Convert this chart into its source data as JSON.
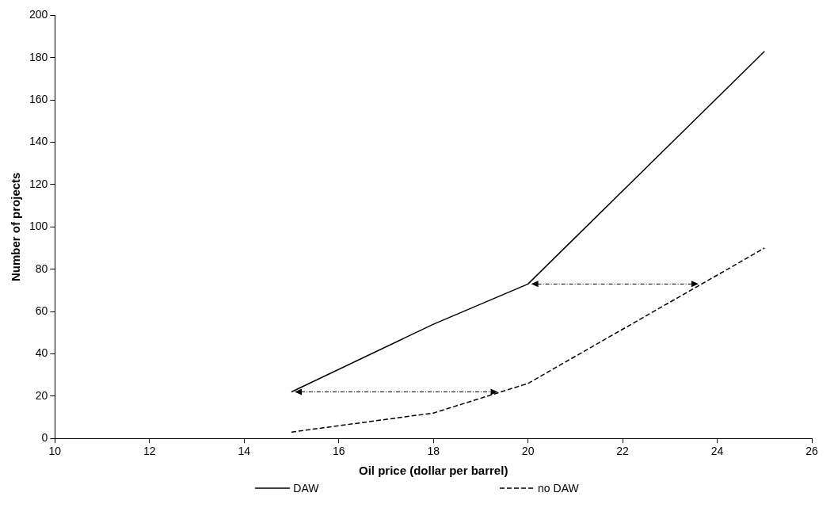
{
  "chart_data": {
    "type": "line",
    "xlabel": "Oil price (dollar per barrel)",
    "ylabel": "Number of projects",
    "x": [
      15,
      18,
      20,
      25
    ],
    "series": [
      {
        "name": "DAW",
        "color": "#000000",
        "values": [
          22,
          54,
          73,
          183
        ],
        "line_style": "solid"
      },
      {
        "name": "no DAW",
        "color": "#000000",
        "values": [
          3,
          12,
          26,
          90
        ],
        "line_style": "dashed"
      }
    ],
    "xlim": [
      10,
      26
    ],
    "xticks": [
      10,
      12,
      14,
      16,
      18,
      20,
      22,
      24,
      26
    ],
    "ylim": [
      0,
      200
    ],
    "yticks": [
      0,
      20,
      40,
      60,
      80,
      100,
      120,
      140,
      160,
      180,
      200
    ],
    "grid": false,
    "legend": "bottom",
    "marker": "none"
  }
}
